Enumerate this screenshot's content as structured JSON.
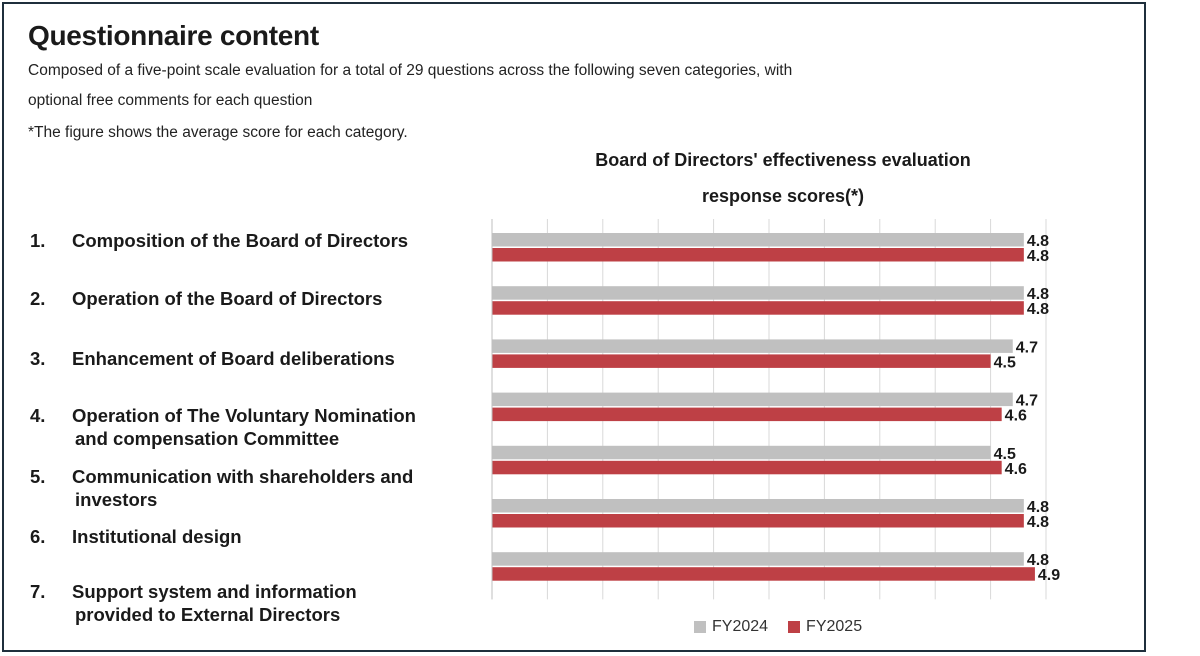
{
  "page": {
    "title": "Questionnaire content",
    "desc_line1": "Composed of a five-point scale evaluation for a total of 29 questions across the following seven categories, with",
    "desc_line2": "optional free comments for each question",
    "note": "*The figure shows the average score for each category."
  },
  "categories_list": [
    {
      "num": "1.",
      "line1": "Composition of the Board of Directors",
      "line2": ""
    },
    {
      "num": "2.",
      "line1": "Operation of the Board of Directors",
      "line2": ""
    },
    {
      "num": "3.",
      "line1": "Enhancement of Board deliberations",
      "line2": ""
    },
    {
      "num": "4.",
      "line1": "Operation of The Voluntary Nomination",
      "line2": "and compensation Committee"
    },
    {
      "num": "5.",
      "line1": "Communication with shareholders and",
      "line2": "investors"
    },
    {
      "num": "6.",
      "line1": "Institutional design",
      "line2": ""
    },
    {
      "num": "7.",
      "line1": "Support system and information",
      "line2": "provided to External Directors"
    }
  ],
  "chart_data": {
    "type": "bar",
    "orientation": "horizontal",
    "title_line1": "Board of Directors' effectiveness evaluation",
    "title_line2": "response scores(*)",
    "categories": [
      "1",
      "2",
      "3",
      "4",
      "5",
      "6",
      "7"
    ],
    "series": [
      {
        "name": "FY2024",
        "color": "#c0c0c0",
        "values": [
          4.8,
          4.8,
          4.7,
          4.7,
          4.5,
          4.8,
          4.8
        ]
      },
      {
        "name": "FY2025",
        "color": "#be4045",
        "values": [
          4.8,
          4.8,
          4.5,
          4.6,
          4.6,
          4.8,
          4.9
        ]
      }
    ],
    "xlim": [
      0,
      5
    ],
    "grid": "vertical",
    "legend": "bottom",
    "data_labels": true
  }
}
